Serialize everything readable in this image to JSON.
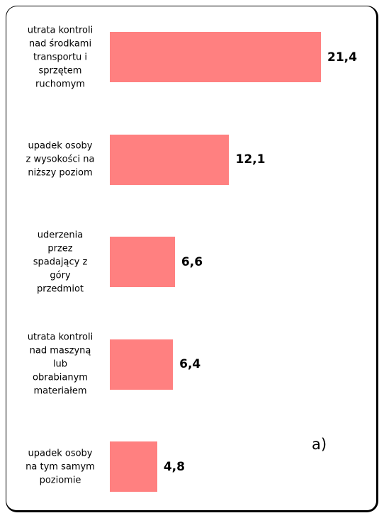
{
  "chart_data": {
    "type": "bar",
    "orientation": "horizontal",
    "categories": [
      "utrata kontroli\nnad środkami\ntransportu i\nsprzętem\nruchomym",
      "upadek osoby\nz wysokości na\nniższy poziom",
      "uderzenia\nprzez\nspadający z\ngóry\nprzedmiot",
      "utrata kontroli\nnad maszyną\nlub\nobrabianym\nmateriałem",
      "upadek osoby\nna tym samym\npoziomie"
    ],
    "values": [
      21.4,
      12.1,
      6.6,
      6.4,
      4.8
    ],
    "value_labels": [
      "21,4",
      "12,1",
      "6,6",
      "6,4",
      "4,8"
    ],
    "color": "#ff8080",
    "annotation": "a)"
  }
}
